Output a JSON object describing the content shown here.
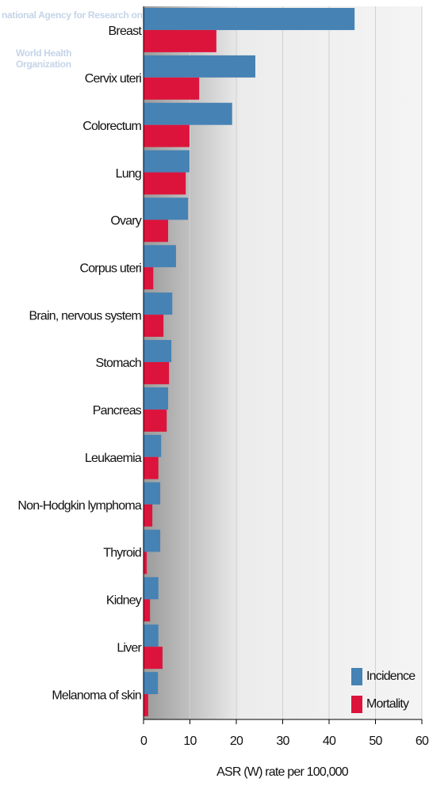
{
  "watermark": [
    "national Agency for Research on",
    "World Health",
    "Organization"
  ],
  "chart_data": {
    "type": "bar",
    "orientation": "horizontal",
    "x_label": "ASR (W) rate per 100,000",
    "categories": [
      "Breast",
      "Cervix uteri",
      "Colorectum",
      "Lung",
      "Ovary",
      "Corpus uteri",
      "Brain, nervous system",
      "Stomach",
      "Pancreas",
      "Leukaemia",
      "Non-Hodgkin lymphoma",
      "Thyroid",
      "Kidney",
      "Liver",
      "Melanoma of skin"
    ],
    "series": [
      {
        "name": "Incidence",
        "color": "#4682b4",
        "values": [
          45.5,
          24.1,
          19.1,
          9.9,
          9.6,
          7.0,
          6.2,
          6.0,
          5.3,
          3.8,
          3.6,
          3.6,
          3.2,
          3.2,
          3.1
        ]
      },
      {
        "name": "Mortality",
        "color": "#dc143c",
        "values": [
          15.7,
          12.0,
          9.9,
          9.1,
          5.3,
          2.1,
          4.3,
          5.5,
          5.0,
          3.2,
          1.9,
          0.7,
          1.4,
          4.1,
          1.0
        ]
      }
    ],
    "xlim": [
      0,
      60
    ],
    "xticks": [
      0,
      10,
      20,
      30,
      40,
      50,
      60
    ],
    "grid": true,
    "legend": "bottom-right"
  }
}
